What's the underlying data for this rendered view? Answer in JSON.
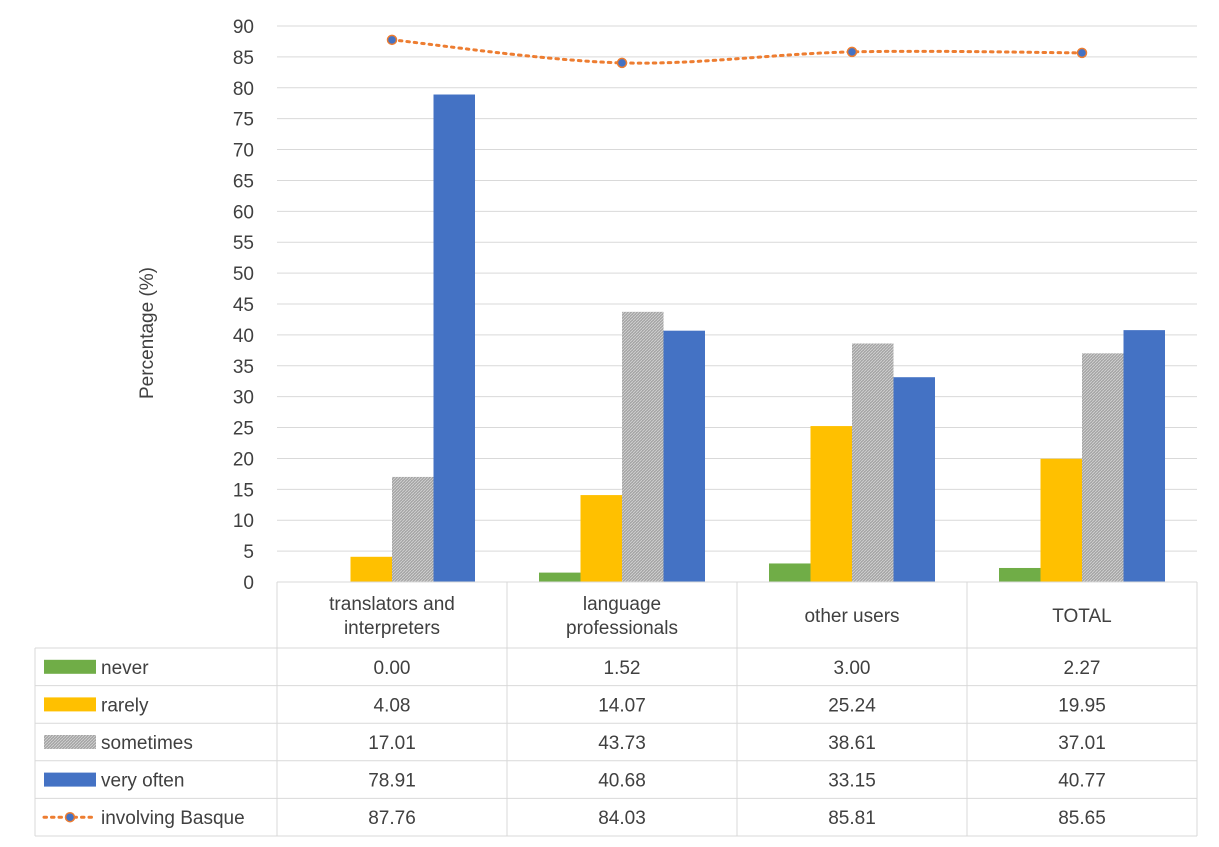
{
  "chart_data": {
    "type": "bar",
    "ylabel": "Percentage (%)",
    "ylim": [
      0,
      90
    ],
    "ytick_step": 5,
    "grid": true,
    "categories": [
      [
        "translators and",
        "interpreters"
      ],
      [
        "language",
        "professionals"
      ],
      [
        "other users"
      ],
      [
        "TOTAL"
      ]
    ],
    "series": [
      {
        "name": "never",
        "kind": "bar",
        "color": "#70ad47",
        "values": [
          0.0,
          1.52,
          3.0,
          2.27
        ],
        "labels": [
          "0.00",
          "1.52",
          "3.00",
          "2.27"
        ]
      },
      {
        "name": "rarely",
        "kind": "bar",
        "color": "#ffc000",
        "values": [
          4.08,
          14.07,
          25.24,
          19.95
        ],
        "labels": [
          "4.08",
          "14.07",
          "25.24",
          "19.95"
        ]
      },
      {
        "name": "sometimes",
        "kind": "bar",
        "color": "#a5a5a5",
        "pattern": "hatch",
        "values": [
          17.01,
          43.73,
          38.61,
          37.01
        ],
        "labels": [
          "17.01",
          "43.73",
          "38.61",
          "37.01"
        ]
      },
      {
        "name": "very often",
        "kind": "bar",
        "color": "#4472c4",
        "values": [
          78.91,
          40.68,
          33.15,
          40.77
        ],
        "labels": [
          "78.91",
          "40.68",
          "33.15",
          "40.77"
        ]
      },
      {
        "name": "involving Basque",
        "kind": "line",
        "color": "#ed7d31",
        "marker_color": "#4472c4",
        "line_style": "dotted",
        "values": [
          87.76,
          84.03,
          85.81,
          85.65
        ],
        "labels": [
          "87.76",
          "84.03",
          "85.81",
          "85.65"
        ]
      }
    ],
    "data_table": true
  }
}
